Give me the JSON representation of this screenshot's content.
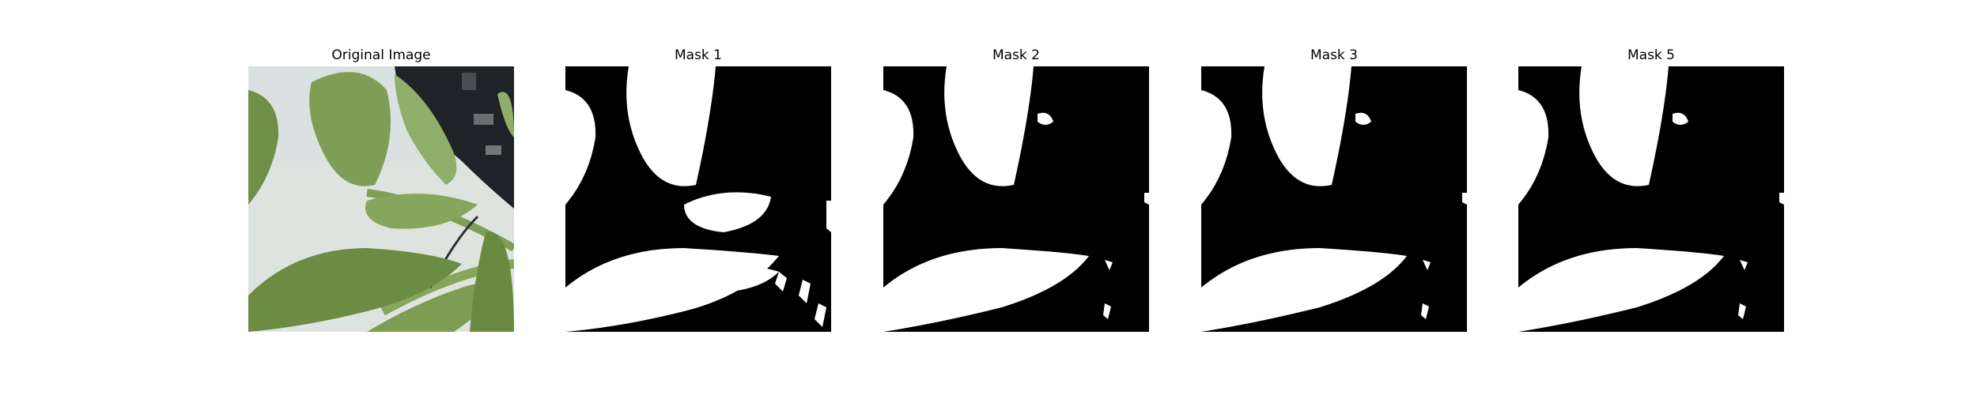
{
  "figure": {
    "panels": [
      {
        "id": "original",
        "title": "Original Image",
        "kind": "photo"
      },
      {
        "id": "mask1",
        "title": "Mask 1",
        "kind": "mask"
      },
      {
        "id": "mask2",
        "title": "Mask 2",
        "kind": "mask"
      },
      {
        "id": "mask3",
        "title": "Mask 3",
        "kind": "mask"
      },
      {
        "id": "mask5",
        "title": "Mask 5",
        "kind": "mask"
      }
    ],
    "colors": {
      "mask_background": "#000000",
      "mask_foreground": "#ffffff",
      "photo_background": "#dde4df",
      "leaf_light": "#8fae6a",
      "leaf_dark": "#5f7d3e",
      "pot": "#1d2326"
    }
  }
}
